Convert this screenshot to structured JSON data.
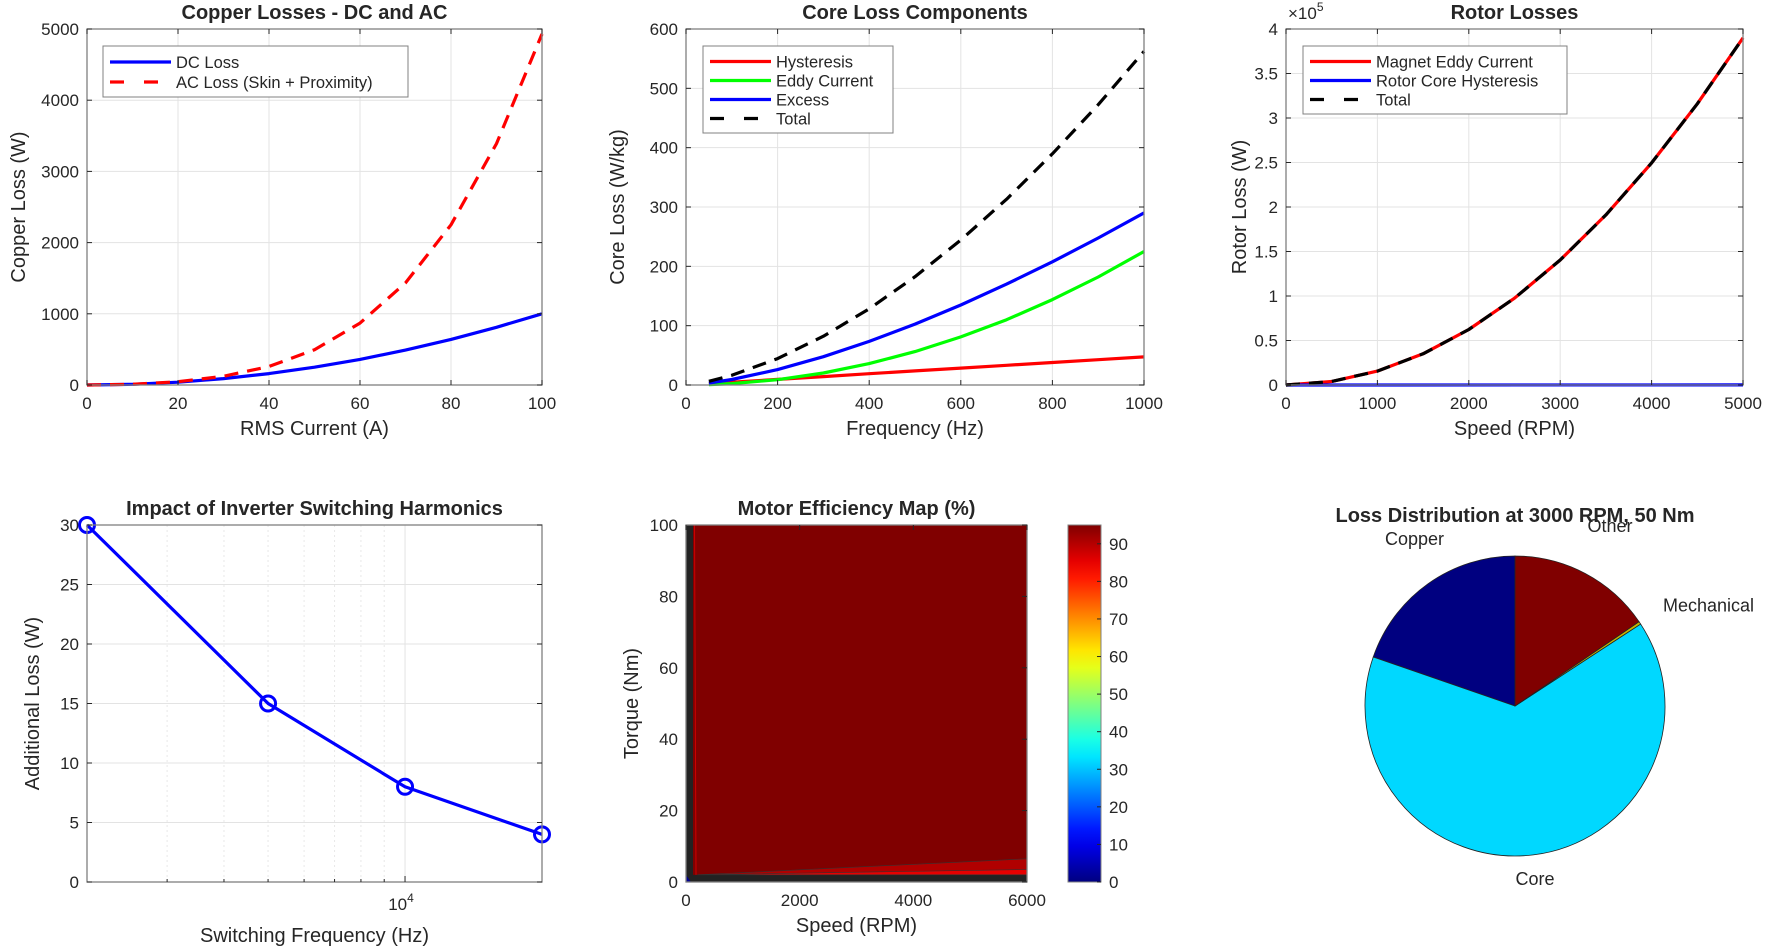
{
  "chart_data": [
    {
      "id": "copper",
      "type": "line",
      "title": "Copper Losses - DC and AC",
      "xlabel": "RMS Current (A)",
      "ylabel": "Copper Loss (W)",
      "xlim": [
        0,
        100
      ],
      "ylim": [
        0,
        5000
      ],
      "xticks": [
        0,
        20,
        40,
        60,
        80,
        100
      ],
      "yticks": [
        0,
        1000,
        2000,
        3000,
        4000,
        5000
      ],
      "grid": true,
      "legend_position": "top-left",
      "series": [
        {
          "name": "DC Loss",
          "color": "#0000ff",
          "dash": "solid",
          "x": [
            0,
            10,
            20,
            30,
            40,
            50,
            60,
            70,
            80,
            90,
            100
          ],
          "y": [
            0,
            10,
            40,
            90,
            160,
            250,
            360,
            490,
            640,
            810,
            1000
          ]
        },
        {
          "name": "AC Loss (Skin + Proximity)",
          "color": "#ff0000",
          "dash": "dashed",
          "x": [
            0,
            10,
            20,
            30,
            40,
            50,
            60,
            70,
            80,
            90,
            100
          ],
          "y": [
            0,
            10,
            46,
            122,
            260,
            496,
            870,
            1434,
            2250,
            3390,
            4930
          ]
        }
      ]
    },
    {
      "id": "core",
      "type": "line",
      "title": "Core Loss Components",
      "xlabel": "Frequency (Hz)",
      "ylabel": "Core Loss (W/kg)",
      "xlim": [
        0,
        1000
      ],
      "ylim": [
        0,
        600
      ],
      "xticks": [
        0,
        200,
        400,
        600,
        800,
        1000
      ],
      "yticks": [
        0,
        100,
        200,
        300,
        400,
        500,
        600
      ],
      "grid": true,
      "legend_position": "top-left",
      "series": [
        {
          "name": "Hysteresis",
          "color": "#ff0000",
          "dash": "solid",
          "x": [
            50,
            100,
            200,
            300,
            400,
            500,
            600,
            700,
            800,
            900,
            1000
          ],
          "y": [
            2.4,
            4.8,
            9.5,
            14.2,
            19,
            23.7,
            28.4,
            33.2,
            37.9,
            42.6,
            47.3
          ]
        },
        {
          "name": "Eddy Current",
          "color": "#00ff00",
          "dash": "solid",
          "x": [
            50,
            100,
            200,
            300,
            400,
            500,
            600,
            700,
            800,
            900,
            1000
          ],
          "y": [
            0.6,
            2.3,
            9,
            20.3,
            36,
            56.3,
            81,
            110,
            144,
            182,
            225
          ]
        },
        {
          "name": "Excess",
          "color": "#0000ff",
          "dash": "solid",
          "x": [
            50,
            100,
            200,
            300,
            400,
            500,
            600,
            700,
            800,
            900,
            1000
          ],
          "y": [
            3.2,
            9.2,
            26,
            47.7,
            73.4,
            102.6,
            134.9,
            170,
            207.7,
            247.8,
            290
          ]
        },
        {
          "name": "Total",
          "color": "#000000",
          "dash": "dashed",
          "x": [
            50,
            100,
            200,
            300,
            400,
            500,
            600,
            700,
            800,
            900,
            1000
          ],
          "y": [
            6.2,
            16.3,
            44.5,
            82.2,
            128.4,
            182.6,
            244.3,
            313.2,
            389.6,
            472.4,
            562.3
          ]
        }
      ]
    },
    {
      "id": "rotor",
      "type": "line",
      "title": "Rotor Losses",
      "xlabel": "Speed (RPM)",
      "ylabel": "Rotor Loss (W)",
      "y_exponent_label": "×10",
      "y_exponent": "5",
      "xlim": [
        0,
        5000
      ],
      "ylim": [
        0,
        4
      ],
      "y_scale": 100000,
      "xticks": [
        0,
        1000,
        2000,
        3000,
        4000,
        5000
      ],
      "yticks": [
        0,
        0.5,
        1,
        1.5,
        2,
        2.5,
        3,
        3.5,
        4
      ],
      "grid": true,
      "legend_position": "top-left",
      "series": [
        {
          "name": "Magnet Eddy Current",
          "color": "#ff0000",
          "dash": "solid",
          "x": [
            0,
            500,
            1000,
            1500,
            2000,
            2500,
            3000,
            3500,
            4000,
            4500,
            5000
          ],
          "y": [
            0,
            0.039,
            0.156,
            0.351,
            0.624,
            0.975,
            1.404,
            1.911,
            2.496,
            3.159,
            3.9
          ]
        },
        {
          "name": "Rotor Core Hysteresis",
          "color": "#0000ff",
          "dash": "solid",
          "x": [
            0,
            5000
          ],
          "y": [
            0,
            0.001
          ]
        },
        {
          "name": "Total",
          "color": "#000000",
          "dash": "dashed",
          "x": [
            0,
            500,
            1000,
            1500,
            2000,
            2500,
            3000,
            3500,
            4000,
            4500,
            5000
          ],
          "y": [
            0,
            0.039,
            0.156,
            0.351,
            0.624,
            0.975,
            1.404,
            1.911,
            2.496,
            3.159,
            3.9
          ]
        }
      ]
    },
    {
      "id": "harmonics",
      "type": "line",
      "title": "Impact of Inverter Switching Harmonics",
      "xlabel": "Switching Frequency (Hz)",
      "ylabel": "Additional Loss (W)",
      "x_scale": "log",
      "xlim": [
        2000,
        20000
      ],
      "ylim": [
        0,
        30
      ],
      "xtick_label_base": "10",
      "xtick_label_exp": "4",
      "xtick_value": 10000,
      "yticks": [
        0,
        5,
        10,
        15,
        20,
        25,
        30
      ],
      "grid": true,
      "series": [
        {
          "name": "Additional Loss",
          "color": "#0000ff",
          "marker": "circle",
          "x": [
            2000,
            5000,
            10000,
            20000
          ],
          "y": [
            30,
            15,
            8,
            4
          ]
        }
      ]
    },
    {
      "id": "efficiency",
      "type": "heatmap",
      "title": "Motor Efficiency Map (%)",
      "xlabel": "Speed (RPM)",
      "ylabel": "Torque (Nm)",
      "xlim": [
        0,
        6000
      ],
      "ylim": [
        0,
        100
      ],
      "xticks": [
        0,
        2000,
        4000,
        6000
      ],
      "yticks": [
        0,
        20,
        40,
        60,
        80,
        100
      ],
      "colormap": "jet",
      "clim": [
        0,
        95
      ],
      "colorbar_ticks": [
        0,
        10,
        20,
        30,
        40,
        50,
        60,
        70,
        80,
        90
      ],
      "dominant_value": 95,
      "low_torque_bands": [
        {
          "level": 85,
          "torque_at_start": 2.5,
          "torque_at_end": 6.5
        },
        {
          "level": 80,
          "torque_at_start": 2,
          "torque_at_end": 3.5
        }
      ]
    },
    {
      "id": "distribution",
      "type": "pie",
      "title": "Loss Distribution at 3000 RPM, 50 Nm",
      "slices": [
        {
          "label": "Copper",
          "value": 19.7,
          "color": "#000080"
        },
        {
          "label": "Core",
          "value": 64.5,
          "color": "#00d8ff"
        },
        {
          "label": "Mechanical",
          "value": 0.3,
          "color": "#c8b400"
        },
        {
          "label": "Other",
          "value": 15.5,
          "color": "#800000"
        }
      ]
    }
  ]
}
